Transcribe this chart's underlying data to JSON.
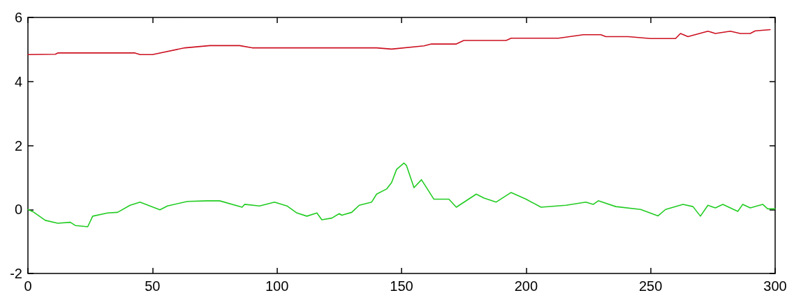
{
  "chart_data": {
    "type": "line",
    "xlim": [
      0,
      300
    ],
    "xticks": [
      0,
      50,
      100,
      150,
      200,
      250,
      300
    ],
    "ylim": [
      -2,
      6
    ],
    "yticks": [
      -2,
      0,
      2,
      4,
      6
    ],
    "grid": false,
    "marker": "none",
    "line_style": "solid",
    "series": [
      {
        "color": "#cc1020",
        "x": [
          0,
          11,
          12,
          43,
          45,
          50,
          63,
          73,
          85,
          90,
          140,
          146,
          159,
          162,
          172,
          175,
          192,
          194,
          213,
          223,
          230,
          232,
          241,
          250,
          260,
          262,
          265,
          273,
          276,
          282,
          286,
          290,
          292,
          298
        ],
        "values": [
          4.84,
          4.85,
          4.89,
          4.89,
          4.84,
          4.84,
          5.05,
          5.12,
          5.12,
          5.05,
          5.05,
          5.01,
          5.11,
          5.17,
          5.17,
          5.28,
          5.28,
          5.35,
          5.35,
          5.46,
          5.46,
          5.4,
          5.4,
          5.34,
          5.34,
          5.5,
          5.4,
          5.57,
          5.5,
          5.57,
          5.5,
          5.5,
          5.58,
          5.62
        ]
      },
      {
        "color": "#22cc22",
        "x": [
          0,
          2,
          7,
          12,
          17,
          19,
          24,
          26,
          32,
          36,
          41,
          45,
          49,
          53,
          56,
          64,
          72,
          77,
          86,
          87,
          93,
          99,
          104,
          108,
          112,
          116,
          118,
          122,
          125,
          126,
          130,
          133,
          138,
          140,
          144,
          146,
          148,
          151,
          152,
          155,
          158,
          163,
          169,
          172,
          180,
          183,
          188,
          194,
          200,
          206,
          216,
          224,
          227,
          229,
          236,
          246,
          253,
          256,
          263,
          267,
          270,
          273,
          276,
          279,
          285,
          287,
          290,
          295,
          297,
          300
        ],
        "values": [
          0,
          -0.07,
          -0.34,
          -0.43,
          -0.4,
          -0.5,
          -0.54,
          -0.21,
          -0.11,
          -0.09,
          0.13,
          0.23,
          0.11,
          -0.01,
          0.11,
          0.25,
          0.27,
          0.27,
          0.07,
          0.16,
          0.11,
          0.23,
          0.11,
          -0.11,
          -0.21,
          -0.11,
          -0.32,
          -0.27,
          -0.13,
          -0.18,
          -0.09,
          0.13,
          0.23,
          0.48,
          0.64,
          0.84,
          1.25,
          1.45,
          1.37,
          0.68,
          0.93,
          0.32,
          0.32,
          0.07,
          0.48,
          0.36,
          0.23,
          0.53,
          0.32,
          0.07,
          0.13,
          0.23,
          0.16,
          0.27,
          0.09,
          0,
          -0.2,
          0,
          0.16,
          0.09,
          -0.21,
          0.13,
          0.05,
          0.16,
          -0.06,
          0.16,
          0.05,
          0.16,
          0.02,
          0.02
        ]
      }
    ]
  }
}
